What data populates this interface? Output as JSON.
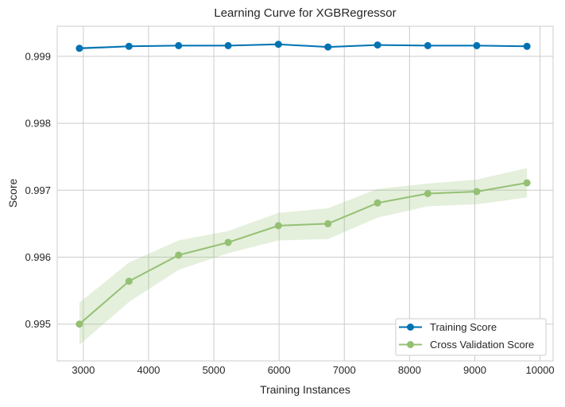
{
  "chart_data": {
    "type": "line",
    "title": "Learning Curve for XGBRegressor",
    "xlabel": "Training Instances",
    "ylabel": "Score",
    "xlim": [
      2600,
      10200
    ],
    "ylim": [
      0.99445,
      0.99945
    ],
    "x_ticks": [
      3000,
      4000,
      5000,
      6000,
      7000,
      8000,
      9000,
      10000
    ],
    "y_ticks": [
      0.995,
      0.996,
      0.997,
      0.998,
      0.999
    ],
    "x_tick_labels": [
      "3000",
      "4000",
      "5000",
      "6000",
      "7000",
      "8000",
      "9000",
      "10000"
    ],
    "y_tick_labels": [
      "0.995",
      "0.996",
      "0.997",
      "0.998",
      "0.999"
    ],
    "grid": true,
    "legend_position": "lower-right",
    "x": [
      2940,
      3700,
      4460,
      5220,
      5990,
      6750,
      7510,
      8280,
      9030,
      9800
    ],
    "series": [
      {
        "name": "Training Score",
        "color": "#0072b2",
        "values": [
          0.99912,
          0.99915,
          0.99916,
          0.99916,
          0.99918,
          0.99914,
          0.99917,
          0.99916,
          0.99916,
          0.99915
        ],
        "band_lower": [
          0.9991,
          0.99914,
          0.99915,
          0.99915,
          0.99917,
          0.99913,
          0.99916,
          0.99915,
          0.99915,
          0.99914
        ],
        "band_upper": [
          0.99914,
          0.99916,
          0.99917,
          0.99917,
          0.99919,
          0.99915,
          0.99918,
          0.99917,
          0.99917,
          0.99916
        ]
      },
      {
        "name": "Cross Validation Score",
        "color": "#94c073",
        "values": [
          0.995,
          0.99564,
          0.99603,
          0.99622,
          0.99647,
          0.9965,
          0.99681,
          0.99695,
          0.99698,
          0.99711
        ],
        "band_lower": [
          0.99469,
          0.99533,
          0.99581,
          0.99606,
          0.99625,
          0.99627,
          0.99659,
          0.99676,
          0.99679,
          0.99689
        ],
        "band_upper": [
          0.99532,
          0.99592,
          0.99625,
          0.99639,
          0.99666,
          0.99673,
          0.99702,
          0.9971,
          0.99716,
          0.99733
        ]
      }
    ]
  }
}
